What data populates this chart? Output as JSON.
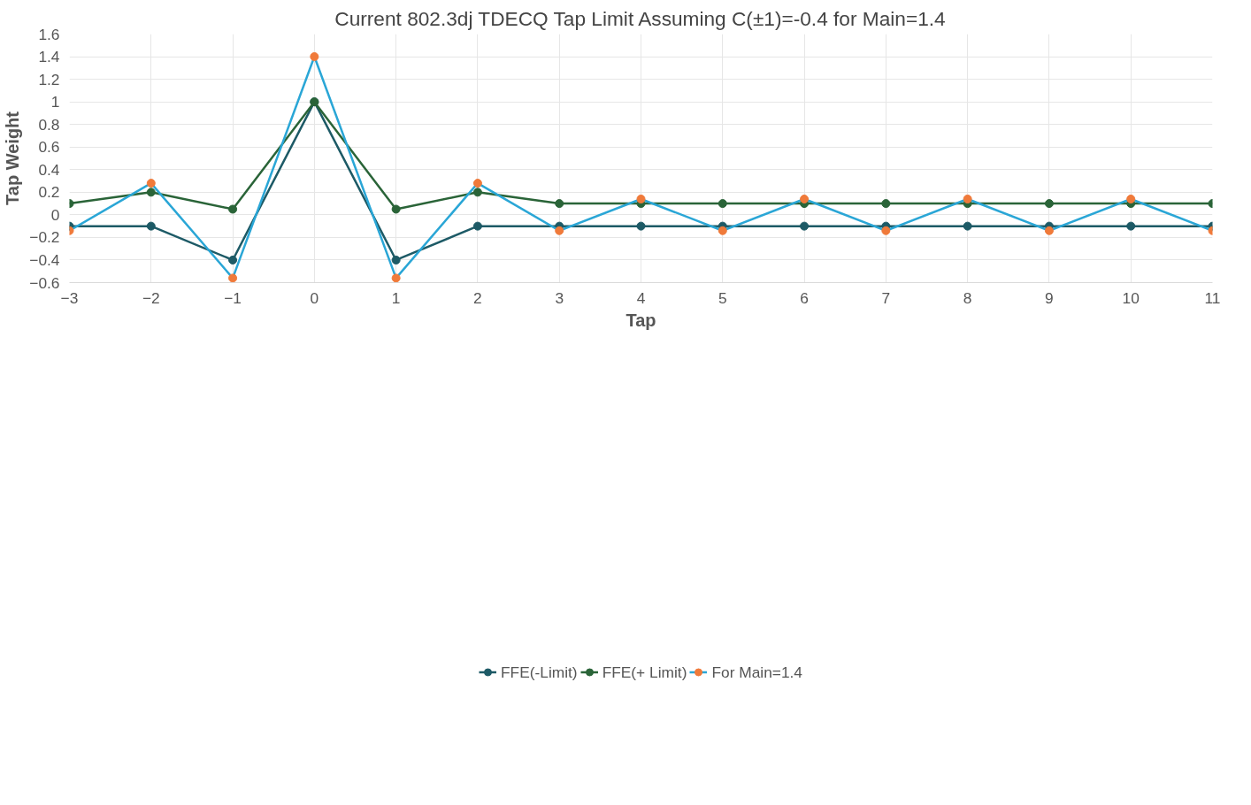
{
  "chart_data": {
    "type": "line",
    "title": "Current 802.3dj TDECQ Tap Limit Assuming C(±1)=-0.4 for Main=1.4",
    "xlabel": "Tap",
    "ylabel": "Tap Weight",
    "x": [
      -3,
      -2,
      -1,
      0,
      1,
      2,
      3,
      4,
      5,
      6,
      7,
      8,
      9,
      10,
      11
    ],
    "series": [
      {
        "name": "FFE(-Limit)",
        "color": "#1d5a66",
        "values": [
          -0.1,
          -0.1,
          -0.4,
          1,
          -0.4,
          -0.1,
          -0.1,
          -0.1,
          -0.1,
          -0.1,
          -0.1,
          -0.1,
          -0.1,
          -0.1,
          -0.1
        ]
      },
      {
        "name": "FFE(+ Limit)",
        "color": "#2a6438",
        "values": [
          0.1,
          0.2,
          0.05,
          1,
          0.05,
          0.2,
          0.1,
          0.1,
          0.1,
          0.1,
          0.1,
          0.1,
          0.1,
          0.1,
          0.1
        ]
      },
      {
        "name": "For Main=1.4",
        "color": "#2aa6d6",
        "colors": [
          "#f07a3a",
          "#f07a3a",
          "#f07a3a",
          "#f07a3a",
          "#f07a3a",
          "#f07a3a",
          "#f07a3a",
          "#f07a3a",
          "#f07a3a",
          "#f07a3a",
          "#f07a3a",
          "#f07a3a",
          "#f07a3a",
          "#f07a3a",
          "#f07a3a"
        ],
        "values": [
          -0.14,
          0.28,
          -0.56,
          1.4,
          -0.56,
          0.28,
          -0.14,
          0.14,
          -0.14,
          0.14,
          -0.14,
          0.14,
          -0.14,
          0.14,
          -0.14
        ]
      }
    ],
    "xlim": [
      -3,
      11
    ],
    "xticks": [
      -3,
      -2,
      -1,
      0,
      1,
      2,
      3,
      4,
      5,
      6,
      7,
      8,
      9,
      10,
      11
    ],
    "ylim": [
      -0.6,
      1.6
    ],
    "yticks": [
      -0.6,
      -0.4,
      -0.2,
      0,
      0.2,
      0.4,
      0.6,
      0.8,
      1,
      1.2,
      1.4,
      1.6
    ],
    "grid": true,
    "legend": "bottom",
    "marker": "circle",
    "line_style": "solid"
  }
}
